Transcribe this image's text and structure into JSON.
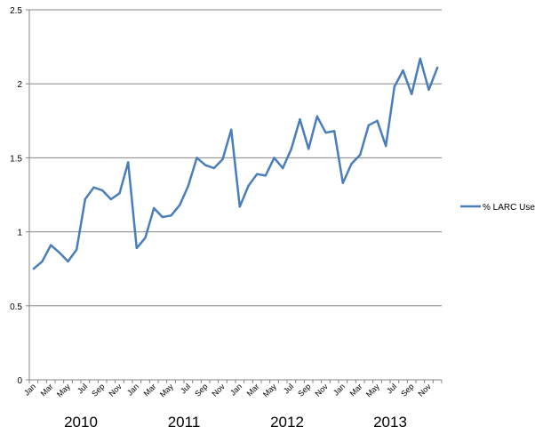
{
  "chart_data": {
    "type": "line",
    "title": "",
    "xlabel": "",
    "ylabel": "",
    "ylim": [
      0,
      2.5
    ],
    "yticks": [
      "0",
      "0.5",
      "1",
      "1.5",
      "2",
      "2.5"
    ],
    "grid": "horizontal",
    "legend_position": "right",
    "x_tick_labels": [
      "Jan",
      "Mar",
      "May",
      "Jul",
      "Sep",
      "Nov",
      "Jan",
      "Mar",
      "May",
      "Jul",
      "Sep",
      "Nov",
      "Jan",
      "Mar",
      "May",
      "Jul",
      "Sep",
      "Nov",
      "Jan",
      "Mar",
      "May",
      "Jul",
      "Sep",
      "Nov"
    ],
    "year_labels": [
      "2010",
      "2011",
      "2012",
      "2013"
    ],
    "colors": {
      "series": "#4a7ebb",
      "grid": "#868686",
      "axis": "#868686"
    },
    "series": [
      {
        "name": "% LARC Use",
        "values": [
          0.75,
          0.8,
          0.91,
          0.86,
          0.8,
          0.88,
          1.22,
          1.3,
          1.28,
          1.22,
          1.26,
          1.47,
          0.89,
          0.96,
          1.16,
          1.1,
          1.11,
          1.18,
          1.31,
          1.5,
          1.45,
          1.43,
          1.49,
          1.69,
          1.17,
          1.31,
          1.39,
          1.38,
          1.5,
          1.43,
          1.56,
          1.76,
          1.56,
          1.78,
          1.67,
          1.68,
          1.33,
          1.46,
          1.52,
          1.72,
          1.75,
          1.58,
          1.98,
          2.09,
          1.93,
          2.17,
          1.96,
          2.11
        ]
      }
    ]
  }
}
